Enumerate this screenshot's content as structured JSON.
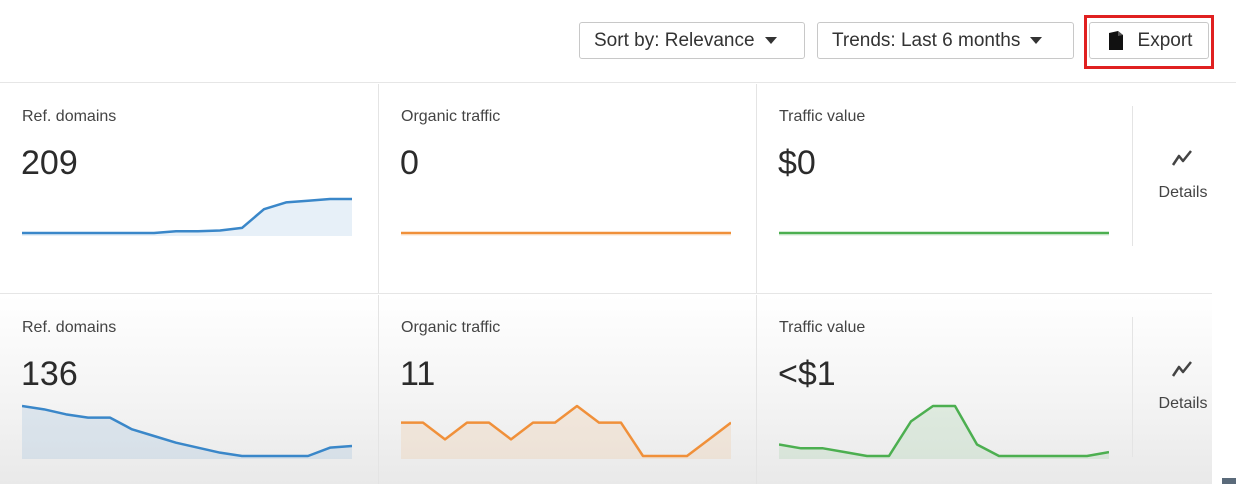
{
  "toolbar": {
    "sort_label": "Sort by: Relevance",
    "trends_label": "Trends: Last 6 months",
    "export_label": "Export"
  },
  "rows": [
    {
      "metrics": [
        {
          "label": "Ref. domains",
          "value": "209",
          "color": "#3a87c9",
          "trend": [
            0,
            0,
            0,
            0,
            0,
            0,
            0,
            0.1,
            0.1,
            0.15,
            0.3,
            1.4,
            1.8,
            1.9,
            2.0,
            2.0
          ]
        },
        {
          "label": "Organic traffic",
          "value": "0",
          "color": "#f0903a",
          "trend": [
            0,
            0,
            0,
            0,
            0,
            0,
            0,
            0,
            0,
            0,
            0,
            0,
            0,
            0,
            0,
            0
          ]
        },
        {
          "label": "Traffic value",
          "value": "$0",
          "color": "#4caf50",
          "trend": [
            0,
            0,
            0,
            0,
            0,
            0,
            0,
            0,
            0,
            0,
            0,
            0,
            0,
            0,
            0,
            0
          ]
        }
      ],
      "details_label": "Details"
    },
    {
      "metrics": [
        {
          "label": "Ref. domains",
          "value": "136",
          "color": "#3a87c9",
          "trend": [
            10,
            9.8,
            9.5,
            9.3,
            9.3,
            8.6,
            8.2,
            7.8,
            7.5,
            7.2,
            7,
            7,
            7,
            7,
            7.5,
            7.6
          ]
        },
        {
          "label": "Organic traffic",
          "value": "11",
          "color": "#f0903a",
          "trend": [
            2,
            2,
            1,
            2,
            2,
            1,
            2,
            2,
            3,
            2,
            2,
            0,
            0,
            0,
            1,
            2
          ]
        },
        {
          "label": "Traffic value",
          "value": "<$1",
          "color": "#4caf50",
          "trend": [
            2,
            1.5,
            1.5,
            1,
            0.5,
            0.5,
            5,
            7,
            7,
            2,
            0.5,
            0.5,
            0.5,
            0.5,
            0.5,
            1
          ]
        }
      ],
      "details_label": "Details"
    }
  ]
}
